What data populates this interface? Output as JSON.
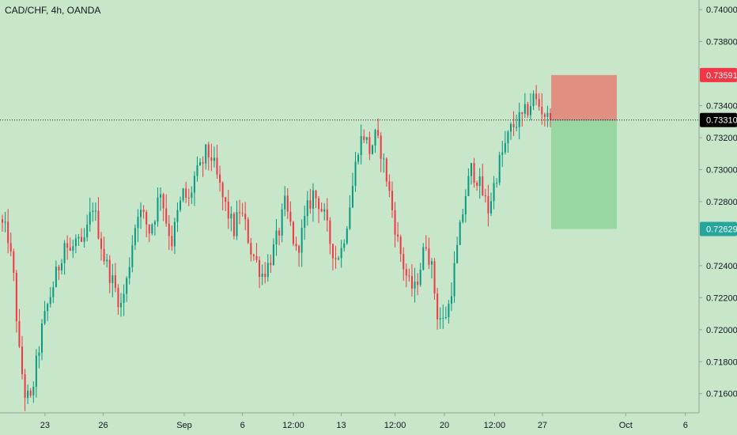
{
  "chart": {
    "symbol_title": "CAD/CHF, 4h, OANDA",
    "colors": {
      "background": "#c8e6c9",
      "up": "#089981",
      "down": "#f23645",
      "axis_text": "#131722",
      "stop_zone": "#e57f73",
      "target_zone": "#8fd39b",
      "stop_badge": "#f23645",
      "target_badge": "#26a69a",
      "current_badge": "#000000"
    }
  },
  "chart_data": {
    "type": "candlestick",
    "title": "CAD/CHF, 4h, OANDA",
    "y_ticks": [
      "0.74000",
      "0.73800",
      "0.73400",
      "0.73200",
      "0.73000",
      "0.72800",
      "0.72400",
      "0.72200",
      "0.72000",
      "0.71800",
      "0.71600"
    ],
    "ylim": [
      0.7148,
      0.7406
    ],
    "x_ticks": [
      {
        "label": "23",
        "pos": 0.061
      },
      {
        "label": "26",
        "pos": 0.14
      },
      {
        "label": "Sep",
        "pos": 0.25
      },
      {
        "label": "6",
        "pos": 0.329
      },
      {
        "label": "12:00",
        "pos": 0.398
      },
      {
        "label": "13",
        "pos": 0.463
      },
      {
        "label": "12:00",
        "pos": 0.536
      },
      {
        "label": "20",
        "pos": 0.603
      },
      {
        "label": "12:00",
        "pos": 0.671
      },
      {
        "label": "27",
        "pos": 0.736
      },
      {
        "label": "Oct",
        "pos": 0.849
      },
      {
        "label": "6",
        "pos": 0.93
      }
    ],
    "current_price": "0.73310",
    "stop_price": "0.73591",
    "target_price": "0.72629",
    "position": {
      "type": "short",
      "entry": 0.7331,
      "stop": 0.73591,
      "target": 0.72629
    },
    "key_path": [
      [
        0,
        0.7265
      ],
      [
        2,
        0.7258
      ],
      [
        4,
        0.7232
      ],
      [
        6,
        0.7185
      ],
      [
        8,
        0.716
      ],
      [
        10,
        0.7155
      ],
      [
        12,
        0.7178
      ],
      [
        14,
        0.72
      ],
      [
        16,
        0.7215
      ],
      [
        18,
        0.7228
      ],
      [
        20,
        0.724
      ],
      [
        22,
        0.7255
      ],
      [
        24,
        0.7248
      ],
      [
        26,
        0.7255
      ],
      [
        28,
        0.725
      ],
      [
        30,
        0.7262
      ],
      [
        32,
        0.7278
      ],
      [
        34,
        0.7262
      ],
      [
        36,
        0.7245
      ],
      [
        38,
        0.7235
      ],
      [
        40,
        0.7225
      ],
      [
        42,
        0.7215
      ],
      [
        44,
        0.723
      ],
      [
        46,
        0.7255
      ],
      [
        48,
        0.7275
      ],
      [
        50,
        0.727
      ],
      [
        52,
        0.7262
      ],
      [
        54,
        0.7272
      ],
      [
        56,
        0.7288
      ],
      [
        58,
        0.7268
      ],
      [
        60,
        0.7255
      ],
      [
        62,
        0.7272
      ],
      [
        64,
        0.7285
      ],
      [
        66,
        0.728
      ],
      [
        68,
        0.7295
      ],
      [
        70,
        0.73
      ],
      [
        72,
        0.731
      ],
      [
        74,
        0.7308
      ],
      [
        76,
        0.7295
      ],
      [
        78,
        0.7282
      ],
      [
        80,
        0.7272
      ],
      [
        82,
        0.7262
      ],
      [
        84,
        0.7275
      ],
      [
        86,
        0.7265
      ],
      [
        88,
        0.725
      ],
      [
        90,
        0.7242
      ],
      [
        92,
        0.7235
      ],
      [
        94,
        0.724
      ],
      [
        96,
        0.725
      ],
      [
        98,
        0.7262
      ],
      [
        100,
        0.7278
      ],
      [
        102,
        0.7265
      ],
      [
        104,
        0.7248
      ],
      [
        106,
        0.726
      ],
      [
        108,
        0.7275
      ],
      [
        110,
        0.7285
      ],
      [
        112,
        0.728
      ],
      [
        114,
        0.727
      ],
      [
        116,
        0.7255
      ],
      [
        118,
        0.7245
      ],
      [
        120,
        0.725
      ],
      [
        122,
        0.7268
      ],
      [
        124,
        0.729
      ],
      [
        126,
        0.7315
      ],
      [
        128,
        0.7322
      ],
      [
        130,
        0.7312
      ],
      [
        132,
        0.732
      ],
      [
        134,
        0.7312
      ],
      [
        136,
        0.7295
      ],
      [
        138,
        0.7275
      ],
      [
        140,
        0.7255
      ],
      [
        142,
        0.724
      ],
      [
        144,
        0.7228
      ],
      [
        146,
        0.7225
      ],
      [
        148,
        0.724
      ],
      [
        150,
        0.7255
      ],
      [
        152,
        0.7238
      ],
      [
        154,
        0.721
      ],
      [
        156,
        0.7205
      ],
      [
        158,
        0.7215
      ],
      [
        160,
        0.7238
      ],
      [
        162,
        0.7262
      ],
      [
        164,
        0.7285
      ],
      [
        166,
        0.73
      ],
      [
        168,
        0.7295
      ],
      [
        170,
        0.7285
      ],
      [
        172,
        0.7275
      ],
      [
        174,
        0.729
      ],
      [
        176,
        0.7305
      ],
      [
        178,
        0.7315
      ],
      [
        180,
        0.7325
      ],
      [
        182,
        0.733
      ],
      [
        184,
        0.7332
      ],
      [
        186,
        0.7338
      ],
      [
        188,
        0.7345
      ],
      [
        190,
        0.734
      ],
      [
        192,
        0.7335
      ],
      [
        194,
        0.7328
      ]
    ]
  }
}
